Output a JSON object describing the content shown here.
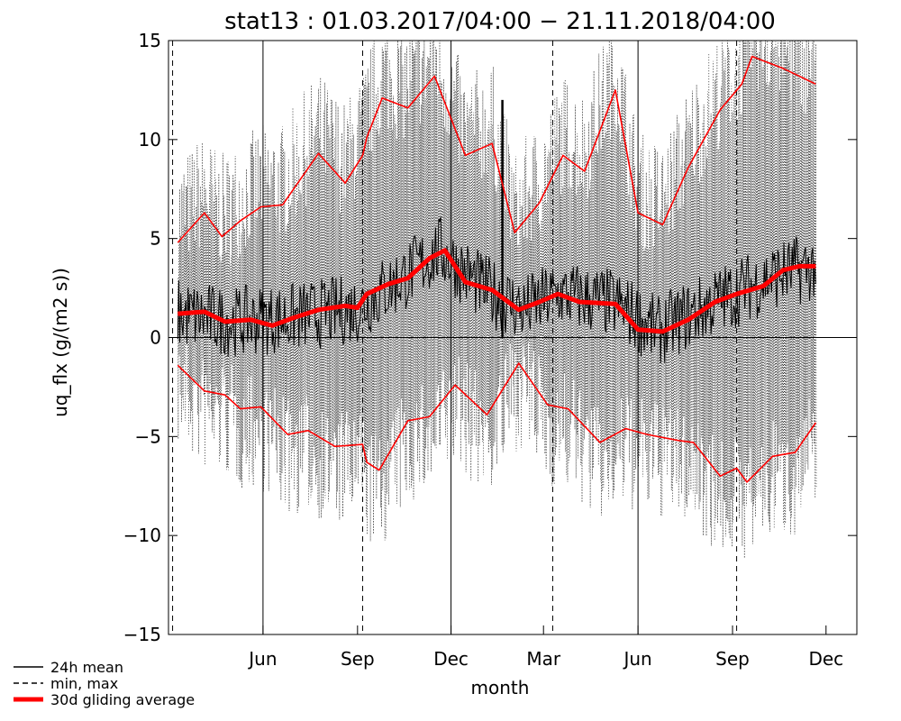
{
  "chart_data": {
    "type": "line",
    "title": "stat13 : 01.03.2017/04:00 − 21.11.2018/04:00",
    "xlabel": "month",
    "ylabel": "uq_flx (g/(m2 s))",
    "ylim": [
      -15,
      15
    ],
    "xlim": [
      "2017-03-01",
      "2018-12-31"
    ],
    "yticks": [
      -15,
      -10,
      -5,
      0,
      5,
      10,
      15
    ],
    "xtick_labels": [
      {
        "date": "2017-06-01",
        "label": "Jun"
      },
      {
        "date": "2017-09-01",
        "label": "Sep"
      },
      {
        "date": "2017-12-01",
        "label": "Dec"
      },
      {
        "date": "2018-03-01",
        "label": "Mar"
      },
      {
        "date": "2018-06-01",
        "label": "Jun"
      },
      {
        "date": "2018-09-01",
        "label": "Sep"
      },
      {
        "date": "2018-12-01",
        "label": "Dec"
      }
    ],
    "legend": {
      "placement": "bottom-left",
      "entries": [
        {
          "label": "24h mean",
          "style": "solid",
          "color": "#000000"
        },
        {
          "label": "min, max",
          "style": "dashed",
          "color": "#000000"
        },
        {
          "label": "30d gliding average",
          "style": "thick",
          "color": "#ff0000"
        }
      ]
    },
    "series": [
      {
        "label": "30d gliding average (24h mean)",
        "color": "#ff0000",
        "points": [
          [
            "2017-03-10",
            1.2
          ],
          [
            "2017-04-05",
            1.3
          ],
          [
            "2017-04-25",
            0.8
          ],
          [
            "2017-05-20",
            0.9
          ],
          [
            "2017-06-10",
            0.6
          ],
          [
            "2017-07-01",
            1.0
          ],
          [
            "2017-07-25",
            1.4
          ],
          [
            "2017-08-20",
            1.6
          ],
          [
            "2017-09-01",
            1.5
          ],
          [
            "2017-09-10",
            2.2
          ],
          [
            "2017-10-01",
            2.7
          ],
          [
            "2017-10-20",
            3.0
          ],
          [
            "2017-11-10",
            4.0
          ],
          [
            "2017-11-25",
            4.4
          ],
          [
            "2017-12-15",
            2.8
          ],
          [
            "2018-01-10",
            2.4
          ],
          [
            "2018-02-05",
            1.4
          ],
          [
            "2018-02-25",
            1.8
          ],
          [
            "2018-03-15",
            2.2
          ],
          [
            "2018-04-05",
            1.8
          ],
          [
            "2018-05-10",
            1.7
          ],
          [
            "2018-06-01",
            0.4
          ],
          [
            "2018-06-25",
            0.3
          ],
          [
            "2018-07-20",
            0.9
          ],
          [
            "2018-08-15",
            1.8
          ],
          [
            "2018-09-05",
            2.2
          ],
          [
            "2018-10-01",
            2.6
          ],
          [
            "2018-10-20",
            3.4
          ],
          [
            "2018-11-05",
            3.6
          ],
          [
            "2018-11-21",
            3.6
          ]
        ]
      },
      {
        "label": "30d gliding average (max)",
        "color": "#ff0000",
        "points": [
          [
            "2017-03-10",
            4.8
          ],
          [
            "2017-04-05",
            6.3
          ],
          [
            "2017-04-22",
            5.1
          ],
          [
            "2017-05-10",
            5.9
          ],
          [
            "2017-05-30",
            6.6
          ],
          [
            "2017-06-20",
            6.7
          ],
          [
            "2017-07-25",
            9.3
          ],
          [
            "2017-08-20",
            7.8
          ],
          [
            "2017-09-06",
            9.2
          ],
          [
            "2017-09-10",
            10.1
          ],
          [
            "2017-09-25",
            12.1
          ],
          [
            "2017-10-20",
            11.6
          ],
          [
            "2017-11-15",
            13.2
          ],
          [
            "2017-12-15",
            9.2
          ],
          [
            "2018-01-10",
            9.8
          ],
          [
            "2018-02-01",
            5.3
          ],
          [
            "2018-02-25",
            6.8
          ],
          [
            "2018-03-20",
            9.2
          ],
          [
            "2018-04-10",
            8.4
          ],
          [
            "2018-05-10",
            12.5
          ],
          [
            "2018-06-01",
            6.3
          ],
          [
            "2018-06-25",
            5.7
          ],
          [
            "2018-07-20",
            8.6
          ],
          [
            "2018-08-20",
            11.5
          ],
          [
            "2018-09-10",
            12.8
          ],
          [
            "2018-09-20",
            14.2
          ],
          [
            "2018-10-20",
            13.6
          ],
          [
            "2018-11-21",
            12.8
          ]
        ]
      },
      {
        "label": "30d gliding average (min)",
        "color": "#ff0000",
        "points": [
          [
            "2017-03-10",
            -1.4
          ],
          [
            "2017-04-05",
            -2.7
          ],
          [
            "2017-04-25",
            -2.9
          ],
          [
            "2017-05-10",
            -3.6
          ],
          [
            "2017-05-30",
            -3.5
          ],
          [
            "2017-06-25",
            -4.9
          ],
          [
            "2017-07-15",
            -4.7
          ],
          [
            "2017-08-10",
            -5.5
          ],
          [
            "2017-09-06",
            -5.4
          ],
          [
            "2017-09-10",
            -6.3
          ],
          [
            "2017-09-22",
            -6.7
          ],
          [
            "2017-10-20",
            -4.2
          ],
          [
            "2017-11-10",
            -4.0
          ],
          [
            "2017-12-05",
            -2.4
          ],
          [
            "2018-01-05",
            -3.9
          ],
          [
            "2018-02-05",
            -1.3
          ],
          [
            "2018-03-05",
            -3.4
          ],
          [
            "2018-03-25",
            -3.6
          ],
          [
            "2018-04-25",
            -5.3
          ],
          [
            "2018-05-20",
            -4.6
          ],
          [
            "2018-06-10",
            -4.9
          ],
          [
            "2018-07-10",
            -5.2
          ],
          [
            "2018-07-25",
            -5.3
          ],
          [
            "2018-08-20",
            -7.0
          ],
          [
            "2018-09-05",
            -6.6
          ],
          [
            "2018-09-15",
            -7.3
          ],
          [
            "2018-10-10",
            -6.0
          ],
          [
            "2018-11-01",
            -5.8
          ],
          [
            "2018-11-21",
            -4.3
          ]
        ]
      }
    ],
    "raw_envelope": {
      "label": "24h mean daily range (approx.)",
      "mean_approx": [
        [
          "2017-03-10",
          1.2
        ],
        [
          "2017-05-01",
          0.8
        ],
        [
          "2017-07-01",
          1.0
        ],
        [
          "2017-09-01",
          1.5
        ],
        [
          "2017-10-15",
          3.0
        ],
        [
          "2017-11-20",
          4.4
        ],
        [
          "2018-01-01",
          2.5
        ],
        [
          "2018-02-10",
          1.4
        ],
        [
          "2018-03-15",
          2.2
        ],
        [
          "2018-05-10",
          1.7
        ],
        [
          "2018-06-20",
          0.3
        ],
        [
          "2018-08-15",
          1.8
        ],
        [
          "2018-10-15",
          3.2
        ],
        [
          "2018-11-21",
          3.6
        ]
      ],
      "spike": [
        "2018-01-20",
        12.0
      ],
      "min_max_dashed_vertical_dates": [
        "2017-03-05",
        "2017-09-06",
        "2018-03-10",
        "2018-09-05"
      ]
    }
  }
}
